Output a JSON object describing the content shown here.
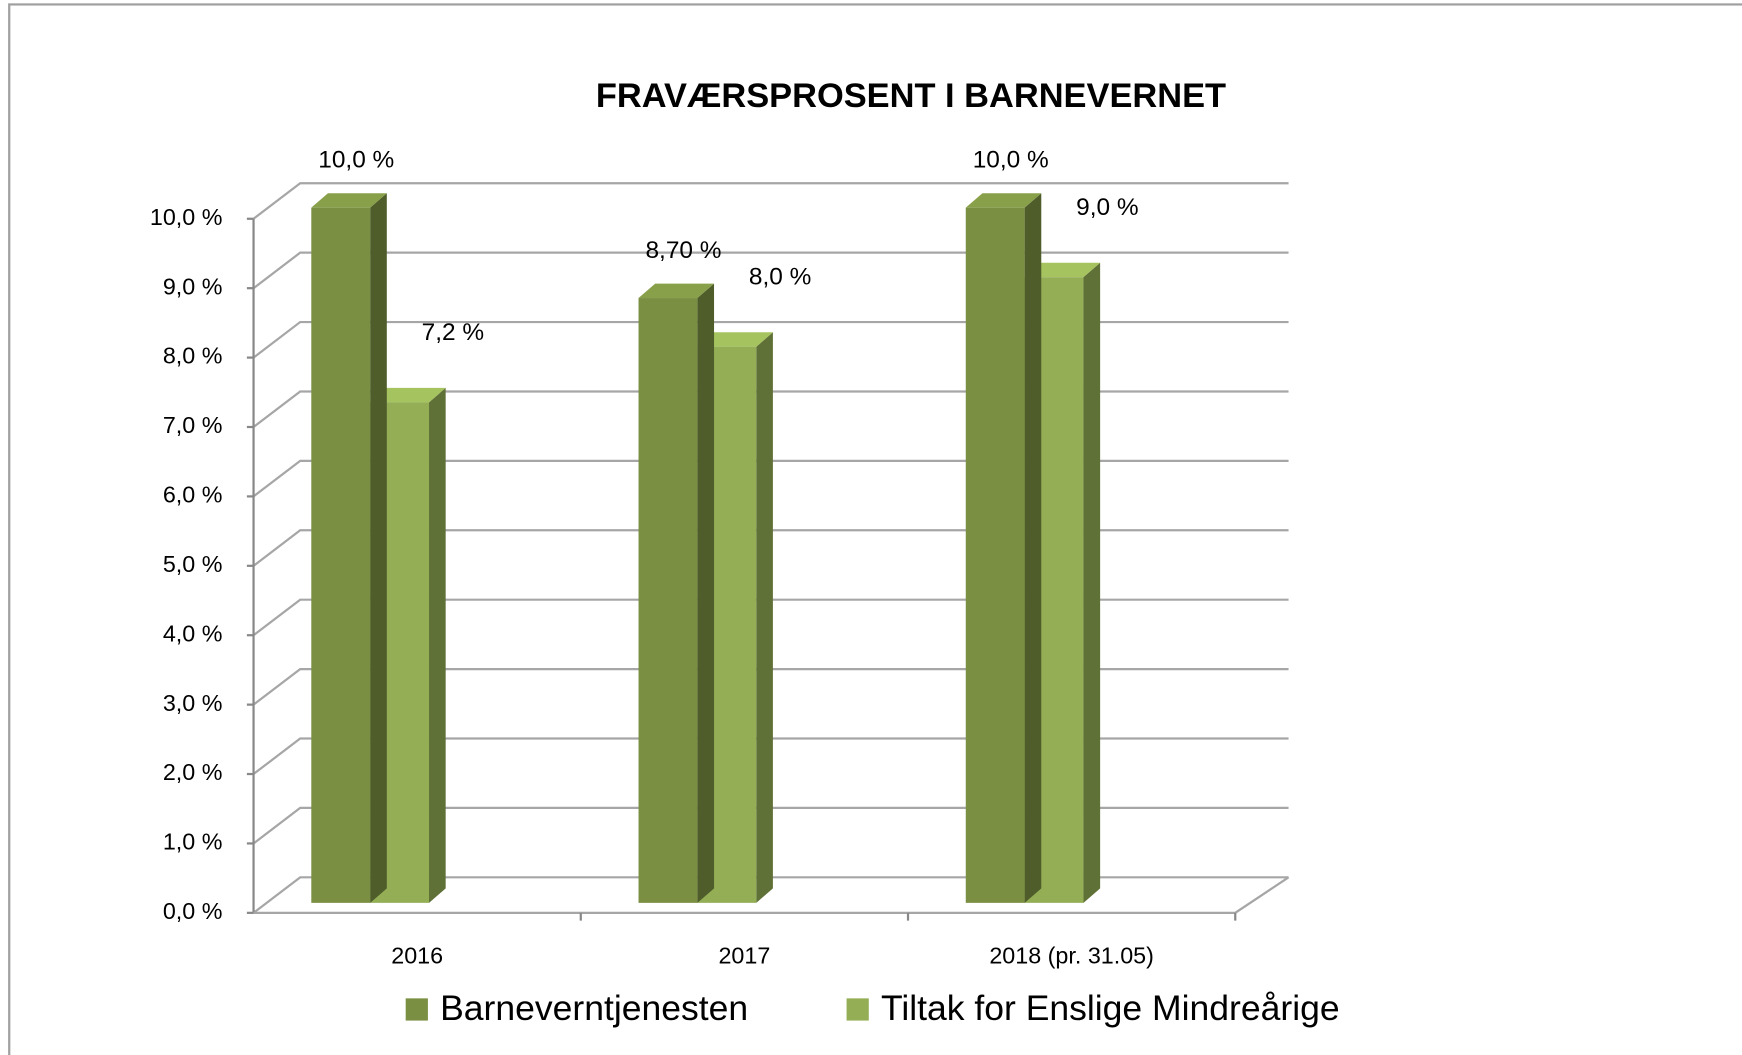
{
  "chart_data": {
    "type": "bar3d",
    "title": "FRAVÆRSPROSENT I BARNEVERNET",
    "categories": [
      "2016",
      "2017",
      "2018 (pr. 31.05)"
    ],
    "series": [
      {
        "name": "Barneverntjenesten",
        "color": "#7a8f42",
        "values": [
          10.0,
          8.7,
          10.0
        ],
        "value_labels": [
          "10,0 %",
          "8,70 %",
          "10,0 %"
        ]
      },
      {
        "name": "Tiltak for Enslige Mindreårige",
        "color": "#93ae55",
        "values": [
          7.2,
          8.0,
          9.0
        ],
        "value_labels": [
          "7,2 %",
          "8,0 %",
          "9,0 %"
        ]
      }
    ],
    "ylim": [
      0,
      10
    ],
    "yticks": [
      {
        "value": 0,
        "label": "0,0 %"
      },
      {
        "value": 1,
        "label": "1,0 %"
      },
      {
        "value": 2,
        "label": "2,0 %"
      },
      {
        "value": 3,
        "label": "3,0 %"
      },
      {
        "value": 4,
        "label": "4,0 %"
      },
      {
        "value": 5,
        "label": "5,0 %"
      },
      {
        "value": 6,
        "label": "6,0 %"
      },
      {
        "value": 7,
        "label": "7,0 %"
      },
      {
        "value": 8,
        "label": "8,0 %"
      },
      {
        "value": 9,
        "label": "9,0 %"
      },
      {
        "value": 10,
        "label": "10,0 %"
      }
    ],
    "grid": true,
    "legend": "bottom"
  }
}
